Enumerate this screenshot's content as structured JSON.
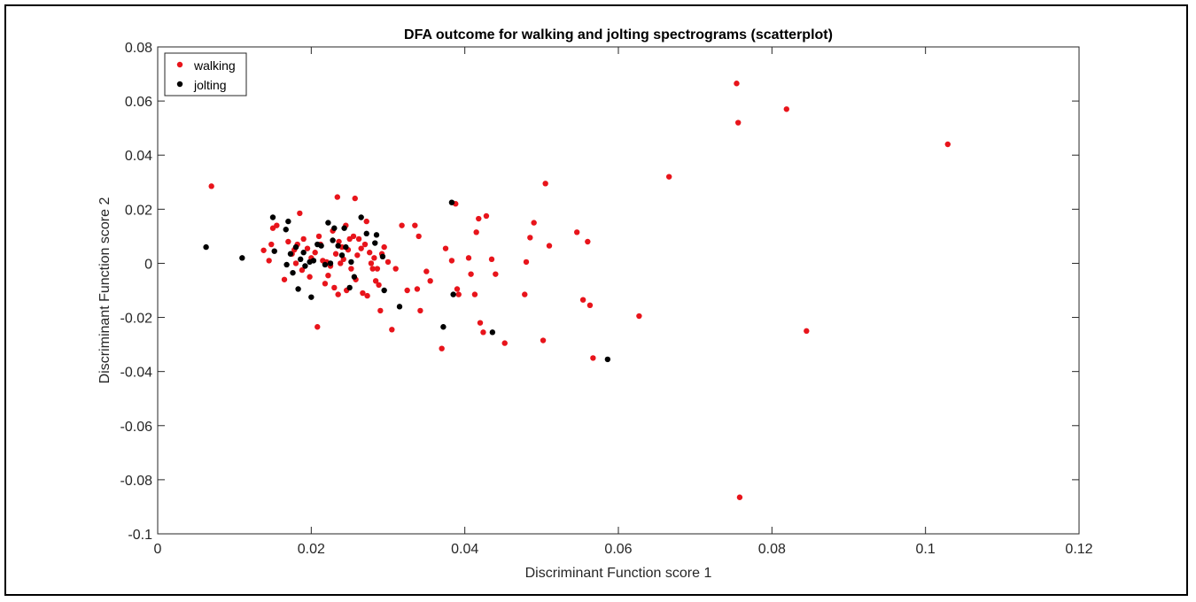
{
  "chart_data": {
    "type": "scatter",
    "title": "DFA outcome for walking and jolting spectrograms (scatterplot)",
    "xlabel": "Discriminant Function score 1",
    "ylabel": "Discriminant Function score 2",
    "xlim": [
      0,
      0.12
    ],
    "ylim": [
      -0.1,
      0.08
    ],
    "xticks": [
      0,
      0.02,
      0.04,
      0.06,
      0.08,
      0.1,
      0.12
    ],
    "xtick_labels": [
      "0",
      "0.02",
      "0.04",
      "0.06",
      "0.08",
      "0.1",
      "0.12"
    ],
    "yticks": [
      0.08,
      0.06,
      0.04,
      0.02,
      0,
      -0.02,
      -0.04,
      -0.06,
      -0.08,
      -0.1
    ],
    "ytick_labels": [
      "0.08",
      "0.06",
      "0.04",
      "0.02",
      "0",
      "-0.02",
      "-0.04",
      "-0.06",
      "-0.08",
      "-0.1"
    ],
    "grid": false,
    "legend_position": "top-left",
    "series": [
      {
        "name": "walking",
        "color": "#e8141b",
        "points": [
          [
            0.007,
            0.0285
          ],
          [
            0.0138,
            0.0048
          ],
          [
            0.0145,
            0.001
          ],
          [
            0.0148,
            0.007
          ],
          [
            0.015,
            0.013
          ],
          [
            0.0155,
            0.014
          ],
          [
            0.0165,
            -0.006
          ],
          [
            0.017,
            0.008
          ],
          [
            0.0175,
            0.0035
          ],
          [
            0.0178,
            0.005
          ],
          [
            0.018,
            0.0
          ],
          [
            0.0182,
            0.007
          ],
          [
            0.0185,
            0.0185
          ],
          [
            0.0188,
            -0.0025
          ],
          [
            0.019,
            0.009
          ],
          [
            0.0195,
            0.0055
          ],
          [
            0.0198,
            -0.005
          ],
          [
            0.02,
            0.002
          ],
          [
            0.0205,
            0.004
          ],
          [
            0.0208,
            -0.0235
          ],
          [
            0.021,
            0.01
          ],
          [
            0.0212,
            0.007
          ],
          [
            0.0215,
            0.001
          ],
          [
            0.0218,
            -0.0075
          ],
          [
            0.022,
            0.0005
          ],
          [
            0.0222,
            -0.0045
          ],
          [
            0.0225,
            -0.001
          ],
          [
            0.0228,
            0.012
          ],
          [
            0.023,
            -0.009
          ],
          [
            0.0232,
            0.0035
          ],
          [
            0.0234,
            0.0245
          ],
          [
            0.0235,
            -0.0115
          ],
          [
            0.0236,
            0.008
          ],
          [
            0.0238,
            0.0
          ],
          [
            0.024,
            0.006
          ],
          [
            0.0242,
            0.0015
          ],
          [
            0.0245,
            0.014
          ],
          [
            0.0246,
            -0.01
          ],
          [
            0.0248,
            0.005
          ],
          [
            0.025,
            0.009
          ],
          [
            0.0252,
            -0.002
          ],
          [
            0.0255,
            0.01
          ],
          [
            0.0257,
            0.024
          ],
          [
            0.0258,
            -0.006
          ],
          [
            0.026,
            0.003
          ],
          [
            0.0262,
            0.009
          ],
          [
            0.0265,
            0.0055
          ],
          [
            0.0267,
            -0.011
          ],
          [
            0.027,
            0.007
          ],
          [
            0.0272,
            0.0155
          ],
          [
            0.0273,
            -0.012
          ],
          [
            0.0276,
            0.004
          ],
          [
            0.0278,
            0.0
          ],
          [
            0.028,
            -0.002
          ],
          [
            0.0282,
            0.002
          ],
          [
            0.0284,
            -0.0065
          ],
          [
            0.0286,
            -0.002
          ],
          [
            0.0288,
            -0.008
          ],
          [
            0.029,
            -0.0175
          ],
          [
            0.0292,
            0.0035
          ],
          [
            0.0295,
            0.006
          ],
          [
            0.03,
            0.0005
          ],
          [
            0.0305,
            -0.0245
          ],
          [
            0.031,
            -0.002
          ],
          [
            0.0318,
            0.014
          ],
          [
            0.0325,
            -0.01
          ],
          [
            0.0335,
            0.014
          ],
          [
            0.0338,
            -0.0095
          ],
          [
            0.034,
            0.01
          ],
          [
            0.0342,
            -0.0175
          ],
          [
            0.035,
            -0.003
          ],
          [
            0.0355,
            -0.0065
          ],
          [
            0.037,
            -0.0315
          ],
          [
            0.0375,
            0.0055
          ],
          [
            0.0383,
            0.001
          ],
          [
            0.0388,
            0.022
          ],
          [
            0.039,
            -0.0095
          ],
          [
            0.0392,
            -0.0115
          ],
          [
            0.0405,
            0.002
          ],
          [
            0.0408,
            -0.004
          ],
          [
            0.0413,
            -0.0115
          ],
          [
            0.0415,
            0.0115
          ],
          [
            0.0418,
            0.0165
          ],
          [
            0.042,
            -0.022
          ],
          [
            0.0424,
            -0.0255
          ],
          [
            0.0428,
            0.0175
          ],
          [
            0.0435,
            0.0015
          ],
          [
            0.044,
            -0.004
          ],
          [
            0.0452,
            -0.0295
          ],
          [
            0.0478,
            -0.0115
          ],
          [
            0.048,
            0.0005
          ],
          [
            0.0485,
            0.0095
          ],
          [
            0.049,
            0.015
          ],
          [
            0.0502,
            -0.0285
          ],
          [
            0.0505,
            0.0295
          ],
          [
            0.051,
            0.0065
          ],
          [
            0.0546,
            0.0115
          ],
          [
            0.0554,
            -0.0135
          ],
          [
            0.056,
            0.008
          ],
          [
            0.0563,
            -0.0155
          ],
          [
            0.0567,
            -0.035
          ],
          [
            0.0627,
            -0.0195
          ],
          [
            0.0666,
            0.032
          ],
          [
            0.0754,
            0.0665
          ],
          [
            0.0756,
            0.052
          ],
          [
            0.0758,
            -0.0865
          ],
          [
            0.0819,
            0.057
          ],
          [
            0.0845,
            -0.025
          ],
          [
            0.1029,
            0.044
          ]
        ]
      },
      {
        "name": "jolting",
        "color": "#000000",
        "points": [
          [
            0.0063,
            0.006
          ],
          [
            0.011,
            0.002
          ],
          [
            0.015,
            0.017
          ],
          [
            0.0152,
            0.0045
          ],
          [
            0.0167,
            0.0125
          ],
          [
            0.0168,
            -0.0005
          ],
          [
            0.017,
            0.0155
          ],
          [
            0.0173,
            0.0035
          ],
          [
            0.0176,
            -0.0035
          ],
          [
            0.018,
            0.006
          ],
          [
            0.0183,
            -0.0095
          ],
          [
            0.0186,
            0.0015
          ],
          [
            0.019,
            0.004
          ],
          [
            0.0192,
            -0.001
          ],
          [
            0.0198,
            0.0005
          ],
          [
            0.02,
            -0.0125
          ],
          [
            0.0203,
            0.001
          ],
          [
            0.0208,
            0.007
          ],
          [
            0.0213,
            0.0065
          ],
          [
            0.0218,
            -0.0005
          ],
          [
            0.0222,
            0.015
          ],
          [
            0.0225,
            0.0
          ],
          [
            0.0228,
            0.0085
          ],
          [
            0.023,
            0.013
          ],
          [
            0.0235,
            0.0065
          ],
          [
            0.024,
            0.003
          ],
          [
            0.0243,
            0.013
          ],
          [
            0.0245,
            0.006
          ],
          [
            0.025,
            -0.009
          ],
          [
            0.0252,
            0.0005
          ],
          [
            0.0256,
            -0.005
          ],
          [
            0.0265,
            0.017
          ],
          [
            0.0272,
            0.011
          ],
          [
            0.0283,
            0.0075
          ],
          [
            0.0285,
            0.0105
          ],
          [
            0.0293,
            0.0025
          ],
          [
            0.0295,
            -0.01
          ],
          [
            0.0315,
            -0.016
          ],
          [
            0.0372,
            -0.0235
          ],
          [
            0.0383,
            0.0225
          ],
          [
            0.0385,
            -0.0115
          ],
          [
            0.0436,
            -0.0255
          ],
          [
            0.0586,
            -0.0355
          ]
        ]
      }
    ]
  }
}
